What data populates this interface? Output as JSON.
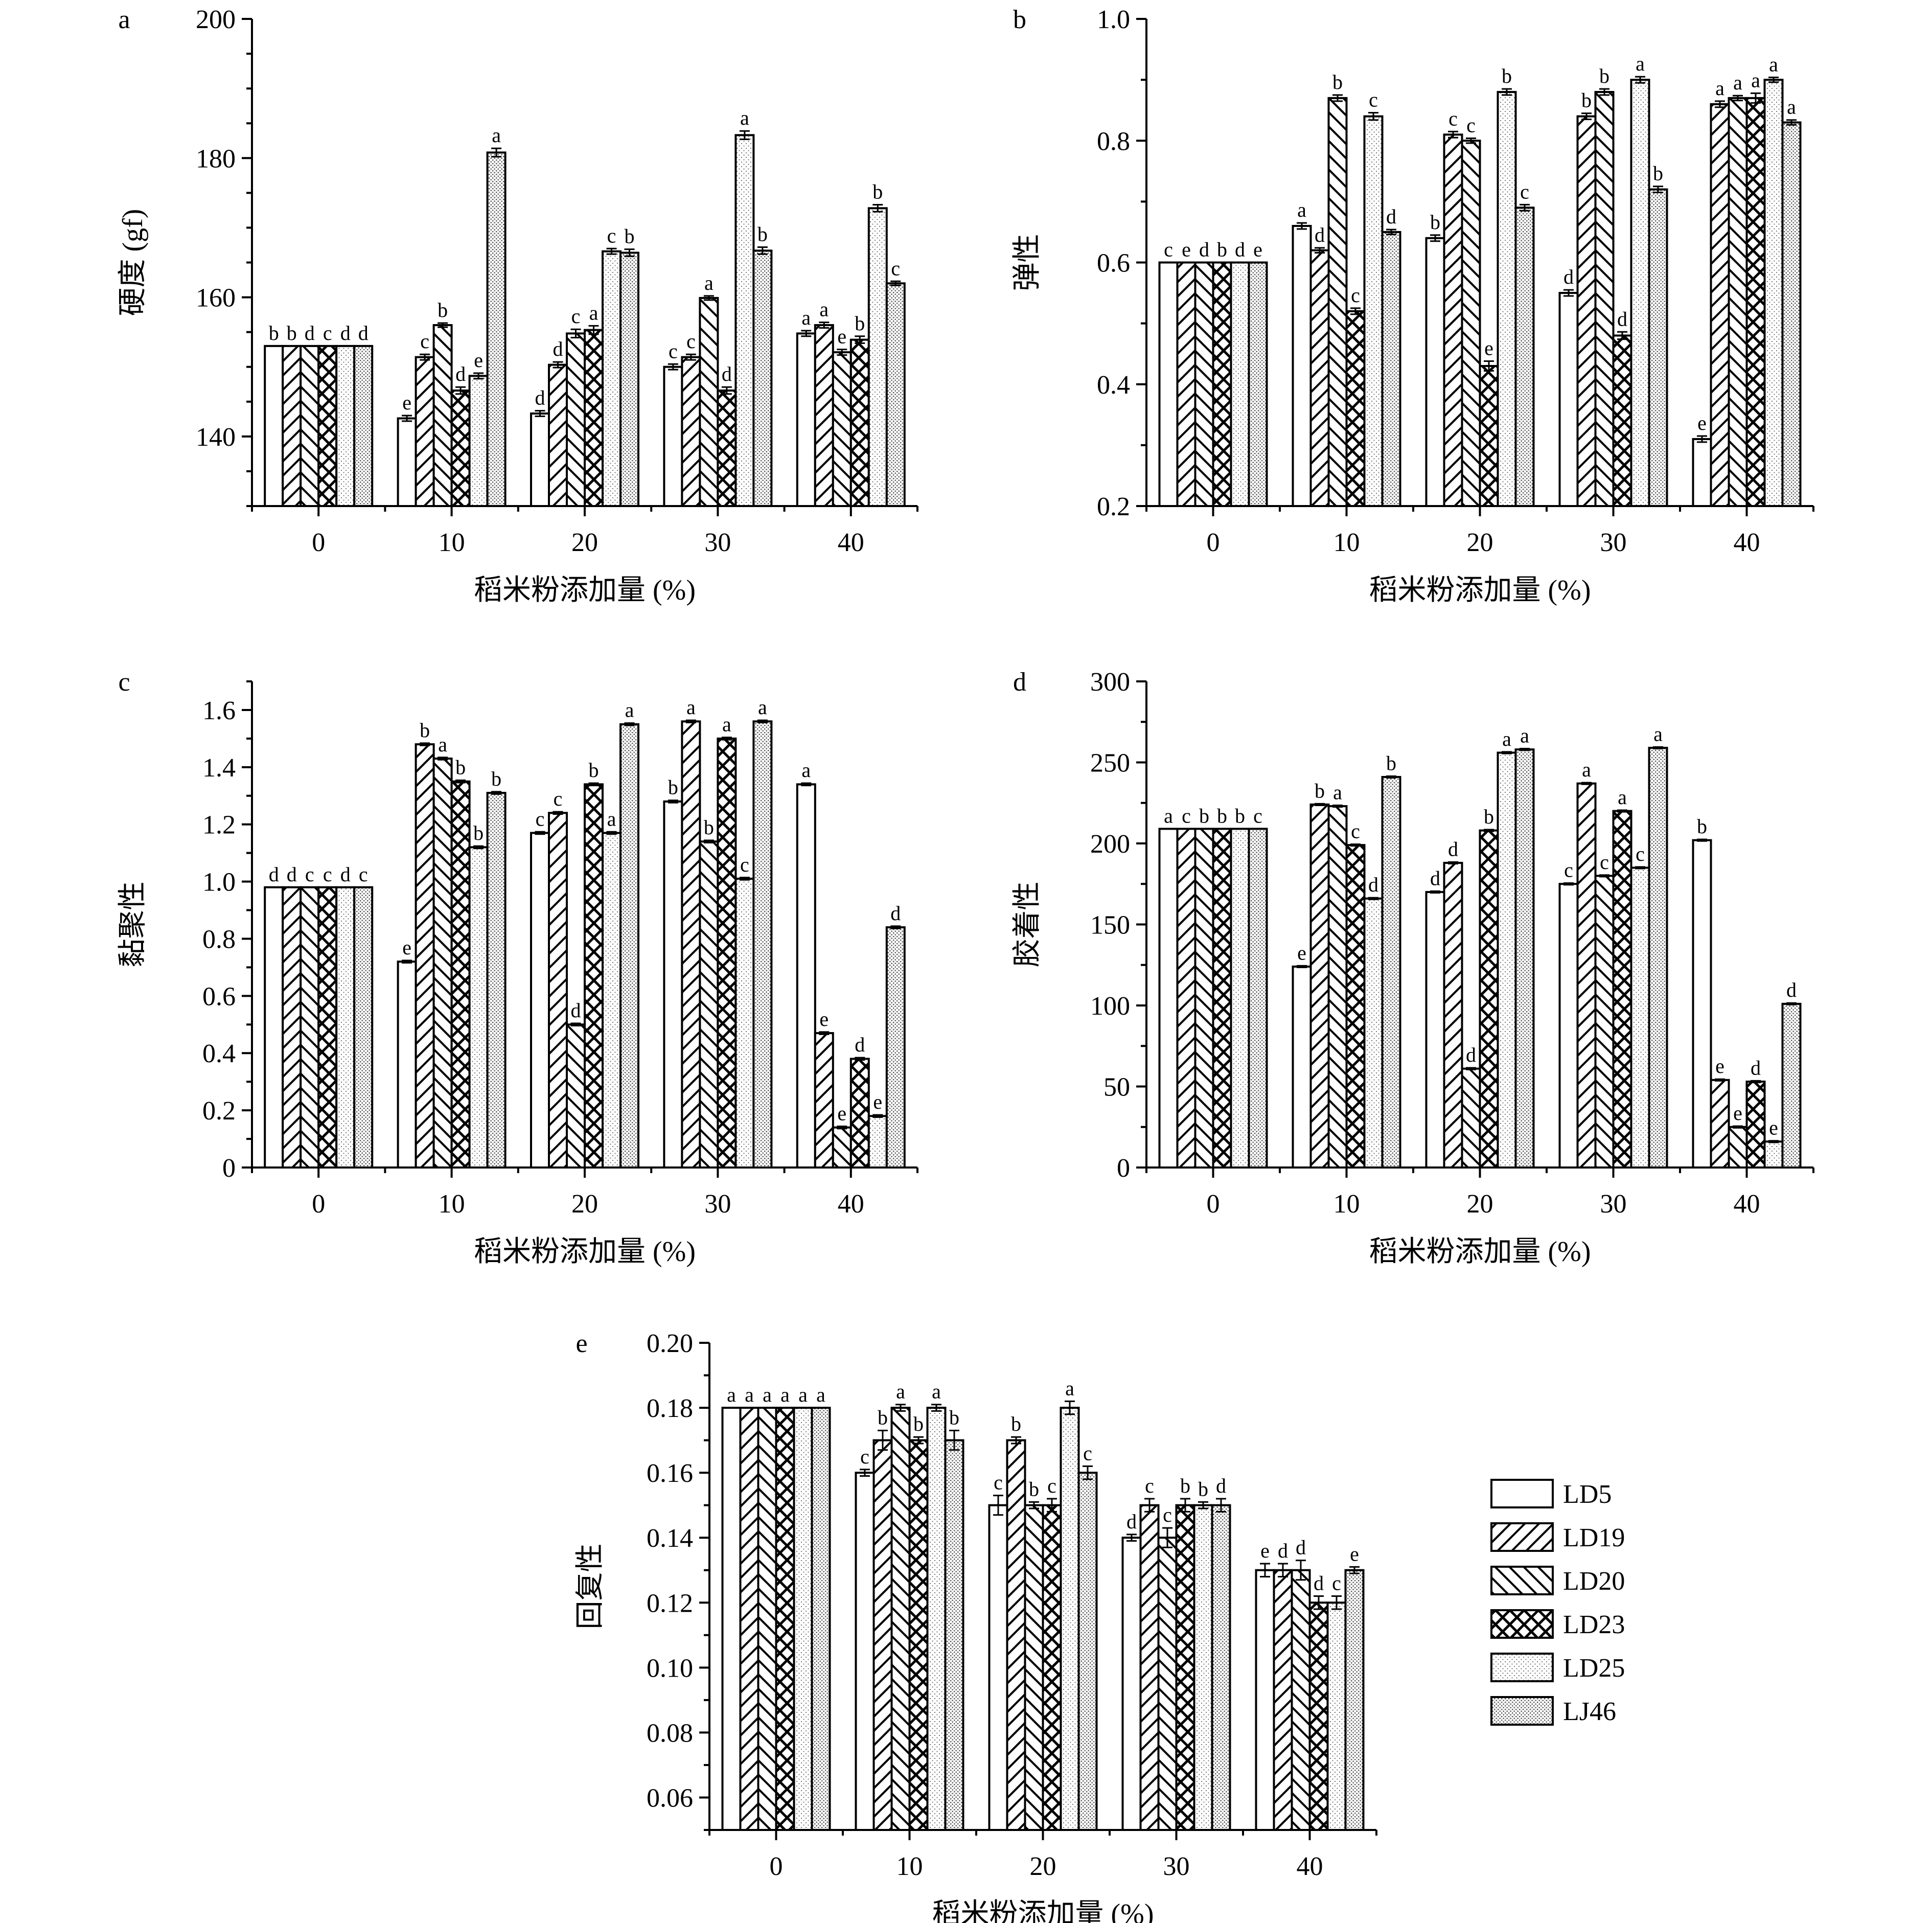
{
  "figure": {
    "xlabel": "稻米粉添加量 (%)",
    "categories": [
      "0",
      "10",
      "20",
      "30",
      "40"
    ],
    "series_names": [
      "LD5",
      "LD19",
      "LD20",
      "LD23",
      "LD25",
      "LJ46"
    ]
  },
  "legend": {
    "items": [
      "LD5",
      "LD19",
      "LD20",
      "LD23",
      "LD25",
      "LJ46"
    ]
  },
  "chart_data": [
    {
      "panel": "a",
      "type": "bar",
      "ylabel": "硬度 (gf)",
      "xlabel": "稻米粉添加量 (%)",
      "categories": [
        "0",
        "10",
        "20",
        "30",
        "40"
      ],
      "ylim": [
        130,
        200
      ],
      "yticks": [
        140,
        160,
        180,
        200
      ],
      "ytick_labels": [
        "140",
        "160",
        "180",
        "200"
      ],
      "minor_step": 5,
      "series": [
        {
          "name": "LD5",
          "values": [
            153,
            142.6,
            143.3,
            150,
            154.8
          ],
          "errors": [
            0,
            0.4,
            0.4,
            0.4,
            0.4
          ],
          "letters": [
            "b",
            "e",
            "d",
            "c",
            "a"
          ]
        },
        {
          "name": "LD19",
          "values": [
            153,
            151.4,
            150.3,
            151.4,
            156
          ],
          "errors": [
            0,
            0.4,
            0.4,
            0.4,
            0.4
          ],
          "letters": [
            "b",
            "c",
            "d",
            "c",
            "a"
          ]
        },
        {
          "name": "LD20",
          "values": [
            153,
            156,
            154.8,
            159.9,
            152.1
          ],
          "errors": [
            0,
            0.3,
            0.6,
            0.3,
            0.4
          ],
          "letters": [
            "d",
            "b",
            "c",
            "a",
            "e"
          ]
        },
        {
          "name": "LD23",
          "values": [
            153,
            146.6,
            155.3,
            146.6,
            153.9
          ],
          "errors": [
            0,
            0.5,
            0.6,
            0.5,
            0.5
          ],
          "letters": [
            "c",
            "d",
            "a",
            "d",
            "b"
          ]
        },
        {
          "name": "LD25",
          "values": [
            153,
            148.7,
            166.6,
            183.3,
            172.8
          ],
          "errors": [
            0,
            0.4,
            0.4,
            0.6,
            0.5
          ],
          "letters": [
            "d",
            "e",
            "c",
            "a",
            "b"
          ]
        },
        {
          "name": "LJ46",
          "values": [
            153,
            180.8,
            166.4,
            166.7,
            162
          ],
          "errors": [
            0,
            0.6,
            0.5,
            0.5,
            0.3
          ],
          "letters": [
            "d",
            "a",
            "b",
            "b",
            "c"
          ]
        }
      ]
    },
    {
      "panel": "b",
      "type": "bar",
      "ylabel": "弹性",
      "xlabel": "稻米粉添加量 (%)",
      "categories": [
        "0",
        "10",
        "20",
        "30",
        "40"
      ],
      "ylim": [
        0.2,
        1.0
      ],
      "yticks": [
        0.2,
        0.4,
        0.6,
        0.8,
        1.0
      ],
      "ytick_labels": [
        "0.2",
        "0.4",
        "0.6",
        "0.8",
        "1.0"
      ],
      "minor_step": 0.1,
      "series": [
        {
          "name": "LD5",
          "values": [
            0.6,
            0.66,
            0.64,
            0.55,
            0.31
          ],
          "errors": [
            0,
            0.005,
            0.005,
            0.005,
            0.005
          ],
          "letters": [
            "c",
            "a",
            "b",
            "d",
            "e"
          ]
        },
        {
          "name": "LD19",
          "values": [
            0.6,
            0.62,
            0.81,
            0.84,
            0.86
          ],
          "errors": [
            0,
            0.004,
            0.005,
            0.005,
            0.005
          ],
          "letters": [
            "e",
            "d",
            "c",
            "b",
            "a"
          ]
        },
        {
          "name": "LD20",
          "values": [
            0.6,
            0.87,
            0.8,
            0.88,
            0.87
          ],
          "errors": [
            0,
            0.005,
            0.004,
            0.005,
            0.004
          ],
          "letters": [
            "d",
            "b",
            "c",
            "b",
            "a"
          ]
        },
        {
          "name": "LD23",
          "values": [
            0.6,
            0.52,
            0.43,
            0.48,
            0.87
          ],
          "errors": [
            0,
            0.005,
            0.008,
            0.006,
            0.008
          ],
          "letters": [
            "b",
            "c",
            "e",
            "d",
            "a"
          ]
        },
        {
          "name": "LD25",
          "values": [
            0.6,
            0.84,
            0.88,
            0.9,
            0.9
          ],
          "errors": [
            0,
            0.006,
            0.005,
            0.005,
            0.004
          ],
          "letters": [
            "d",
            "c",
            "b",
            "a",
            "a"
          ]
        },
        {
          "name": "LJ46",
          "values": [
            0.6,
            0.65,
            0.69,
            0.72,
            0.83
          ],
          "errors": [
            0,
            0.004,
            0.005,
            0.005,
            0.004
          ],
          "letters": [
            "e",
            "d",
            "c",
            "b",
            "a"
          ]
        }
      ]
    },
    {
      "panel": "c",
      "type": "bar",
      "ylabel": "黏聚性",
      "xlabel": "稻米粉添加量 (%)",
      "categories": [
        "0",
        "10",
        "20",
        "30",
        "40"
      ],
      "ylim": [
        0,
        1.7
      ],
      "yticks": [
        0,
        0.2,
        0.4,
        0.6,
        0.8,
        1.0,
        1.2,
        1.4,
        1.6
      ],
      "ytick_labels": [
        "0",
        "0.2",
        "0.4",
        "0.6",
        "0.8",
        "1.0",
        "1.2",
        "1.4",
        "1.6"
      ],
      "minor_step": 0.1,
      "series": [
        {
          "name": "LD5",
          "values": [
            0.98,
            0.72,
            1.17,
            1.28,
            1.34
          ],
          "errors": [
            0,
            0.004,
            0.004,
            0.004,
            0.004
          ],
          "letters": [
            "d",
            "e",
            "c",
            "b",
            "a"
          ]
        },
        {
          "name": "LD19",
          "values": [
            0.98,
            1.48,
            1.24,
            1.56,
            0.47
          ],
          "errors": [
            0,
            0.004,
            0.004,
            0.004,
            0.004
          ],
          "letters": [
            "d",
            "b",
            "c",
            "a",
            "e"
          ]
        },
        {
          "name": "LD20",
          "values": [
            0.98,
            1.43,
            0.5,
            1.14,
            0.14
          ],
          "errors": [
            0,
            0.004,
            0.004,
            0.004,
            0.004
          ],
          "letters": [
            "c",
            "a",
            "d",
            "b",
            "e"
          ]
        },
        {
          "name": "LD23",
          "values": [
            0.98,
            1.35,
            1.34,
            1.5,
            0.38
          ],
          "errors": [
            0,
            0.004,
            0.004,
            0.004,
            0.004
          ],
          "letters": [
            "c",
            "b",
            "b",
            "a",
            "d"
          ]
        },
        {
          "name": "LD25",
          "values": [
            0.98,
            1.12,
            1.17,
            1.01,
            0.18
          ],
          "errors": [
            0,
            0.004,
            0.004,
            0.004,
            0.004
          ],
          "letters": [
            "d",
            "b",
            "a",
            "c",
            "e"
          ]
        },
        {
          "name": "LJ46",
          "values": [
            0.98,
            1.31,
            1.55,
            1.56,
            0.84
          ],
          "errors": [
            0,
            0.004,
            0.004,
            0.004,
            0.004
          ],
          "letters": [
            "c",
            "b",
            "a",
            "a",
            "d"
          ]
        }
      ]
    },
    {
      "panel": "d",
      "type": "bar",
      "ylabel": "胶着性",
      "xlabel": "稻米粉添加量 (%)",
      "categories": [
        "0",
        "10",
        "20",
        "30",
        "40"
      ],
      "ylim": [
        0,
        300
      ],
      "yticks": [
        0,
        50,
        100,
        150,
        200,
        250,
        300
      ],
      "ytick_labels": [
        "0",
        "50",
        "100",
        "150",
        "200",
        "250",
        "300"
      ],
      "minor_step": 25,
      "series": [
        {
          "name": "LD5",
          "values": [
            209,
            124,
            170,
            175,
            202
          ],
          "errors": [
            0,
            0.5,
            0.5,
            0.5,
            0.5
          ],
          "letters": [
            "a",
            "e",
            "d",
            "c",
            "b"
          ]
        },
        {
          "name": "LD19",
          "values": [
            209,
            224,
            188,
            237,
            54
          ],
          "errors": [
            0,
            0.5,
            0.5,
            0.5,
            0.5
          ],
          "letters": [
            "c",
            "b",
            "d",
            "a",
            "e"
          ]
        },
        {
          "name": "LD20",
          "values": [
            209,
            223,
            61,
            180,
            25
          ],
          "errors": [
            0,
            0.5,
            0.5,
            0.5,
            0.5
          ],
          "letters": [
            "b",
            "a",
            "d",
            "c",
            "e"
          ]
        },
        {
          "name": "LD23",
          "values": [
            209,
            199,
            208,
            220,
            53
          ],
          "errors": [
            0,
            0.5,
            0.5,
            0.5,
            0.5
          ],
          "letters": [
            "b",
            "c",
            "b",
            "a",
            "d"
          ]
        },
        {
          "name": "LD25",
          "values": [
            209,
            166,
            256,
            185,
            16
          ],
          "errors": [
            0,
            0.5,
            0.5,
            0.5,
            0.5
          ],
          "letters": [
            "b",
            "d",
            "a",
            "c",
            "e"
          ]
        },
        {
          "name": "LJ46",
          "values": [
            209,
            241,
            258,
            259,
            101
          ],
          "errors": [
            0,
            0.5,
            0.5,
            0.5,
            0.5
          ],
          "letters": [
            "c",
            "b",
            "a",
            "a",
            "d"
          ]
        }
      ]
    },
    {
      "panel": "e",
      "type": "bar",
      "ylabel": "回复性",
      "xlabel": "稻米粉添加量 (%)",
      "categories": [
        "0",
        "10",
        "20",
        "30",
        "40"
      ],
      "ylim": [
        0.05,
        0.2
      ],
      "yticks": [
        0.06,
        0.08,
        0.1,
        0.12,
        0.14,
        0.16,
        0.18,
        0.2
      ],
      "ytick_labels": [
        "0.06",
        "0.08",
        "0.10",
        "0.12",
        "0.14",
        "0.16",
        "0.18",
        "0.20"
      ],
      "minor_step": 0.01,
      "series": [
        {
          "name": "LD5",
          "values": [
            0.18,
            0.16,
            0.15,
            0.14,
            0.13
          ],
          "errors": [
            0,
            0.001,
            0.003,
            0.001,
            0.002
          ],
          "letters": [
            "a",
            "c",
            "c",
            "d",
            "e"
          ]
        },
        {
          "name": "LD19",
          "values": [
            0.18,
            0.17,
            0.17,
            0.15,
            0.13
          ],
          "errors": [
            0,
            0.003,
            0.001,
            0.002,
            0.002
          ],
          "letters": [
            "a",
            "b",
            "b",
            "c",
            "d"
          ]
        },
        {
          "name": "LD20",
          "values": [
            0.18,
            0.18,
            0.15,
            0.14,
            0.13
          ],
          "errors": [
            0,
            0.001,
            0.001,
            0.003,
            0.003
          ],
          "letters": [
            "a",
            "a",
            "b",
            "c",
            "d"
          ]
        },
        {
          "name": "LD23",
          "values": [
            0.18,
            0.17,
            0.15,
            0.15,
            0.12
          ],
          "errors": [
            0,
            0.001,
            0.002,
            0.002,
            0.002
          ],
          "letters": [
            "a",
            "b",
            "c",
            "b",
            "d"
          ]
        },
        {
          "name": "LD25",
          "values": [
            0.18,
            0.18,
            0.18,
            0.15,
            0.12
          ],
          "errors": [
            0,
            0.001,
            0.002,
            0.001,
            0.002
          ],
          "letters": [
            "a",
            "a",
            "a",
            "b",
            "c"
          ]
        },
        {
          "name": "LJ46",
          "values": [
            0.18,
            0.17,
            0.16,
            0.15,
            0.13
          ],
          "errors": [
            0,
            0.003,
            0.002,
            0.002,
            0.001
          ],
          "letters": [
            "a",
            "b",
            "c",
            "d",
            "e"
          ]
        }
      ]
    }
  ]
}
